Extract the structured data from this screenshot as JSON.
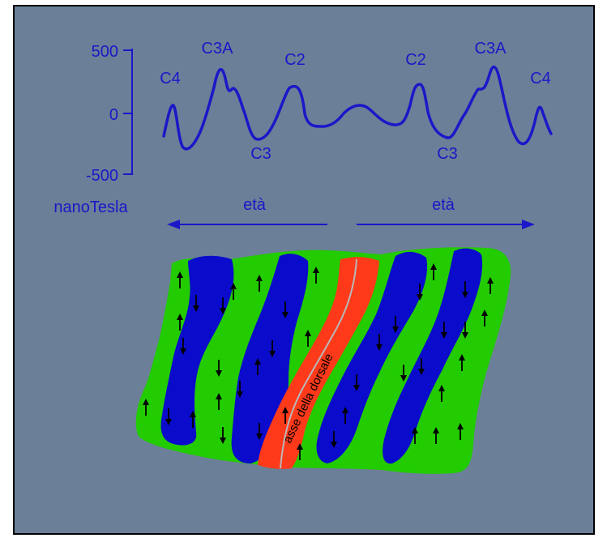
{
  "colors": {
    "background": "#6b7f98",
    "line": "#1a18c8",
    "normal_stripe": "#22cc00",
    "reversed_stripe": "#0b0bcc",
    "ridge_axis": "#ff3a1a",
    "arrow": "#000000"
  },
  "magnetic_profile": {
    "y_ticks": [
      "500",
      "0",
      "-500"
    ],
    "unit": "nanoTesla",
    "anomaly_labels": {
      "left_c4": "C4",
      "left_c3a": "C3A",
      "left_c2": "C2",
      "left_c3": "C3",
      "right_c2": "C2",
      "right_c3a": "C3A",
      "right_c4": "C4",
      "right_c3": "C3"
    }
  },
  "age_arrows": {
    "left": "età",
    "right": "età"
  },
  "ridge_label": "asse della dorsale",
  "arrow_icons": {
    "normal": "up-arrow-icon",
    "reversed": "down-arrow-icon"
  }
}
